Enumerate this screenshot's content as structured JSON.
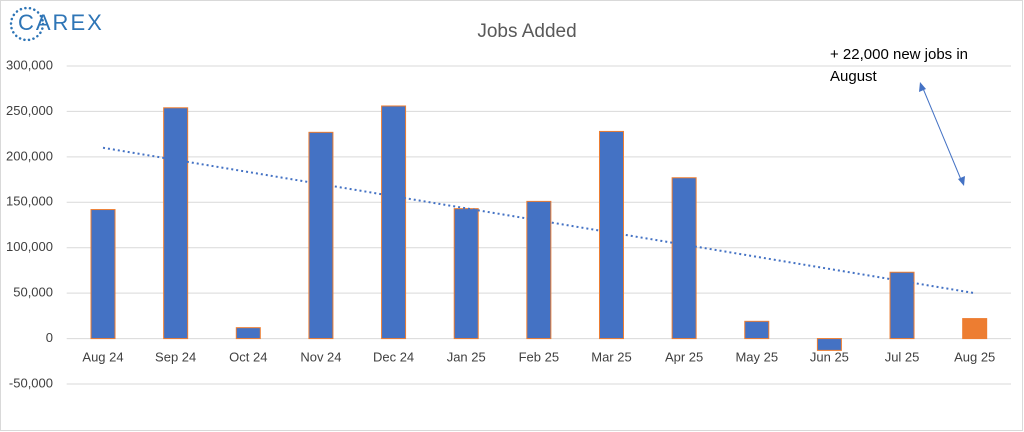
{
  "logo": "CAREX",
  "chart_data": {
    "type": "bar",
    "title": "Jobs Added",
    "categories": [
      "Aug 24",
      "Sep 24",
      "Oct 24",
      "Nov 24",
      "Dec 24",
      "Jan 25",
      "Feb 25",
      "Mar 25",
      "Apr 25",
      "May 25",
      "Jun 25",
      "Jul 25",
      "Aug 25"
    ],
    "values": [
      142000,
      254000,
      12000,
      227000,
      256000,
      143000,
      151000,
      228000,
      177000,
      19000,
      -13000,
      73000,
      22000
    ],
    "colors": [
      "#4472c4",
      "#4472c4",
      "#4472c4",
      "#4472c4",
      "#4472c4",
      "#4472c4",
      "#4472c4",
      "#4472c4",
      "#4472c4",
      "#4472c4",
      "#4472c4",
      "#4472c4",
      "#ed7d31"
    ],
    "edge_color": "#ed7d31",
    "trendline": [
      210000,
      50000
    ],
    "trendline_color": "#4472c4",
    "ylim": [
      -50000,
      300000
    ],
    "yticks": [
      {
        "value": -50000,
        "label": "-50,000"
      },
      0,
      {
        "value": 50000,
        "label": "50,000"
      },
      {
        "value": 100000,
        "label": "100,000"
      },
      {
        "value": 150000,
        "label": "150,000"
      },
      {
        "value": 200000,
        "label": "200,000"
      },
      {
        "value": 250000,
        "label": "250,000"
      },
      {
        "value": 300000,
        "label": "300,000"
      }
    ],
    "grid": true,
    "annotation": "+ 22,000 new jobs in August"
  }
}
